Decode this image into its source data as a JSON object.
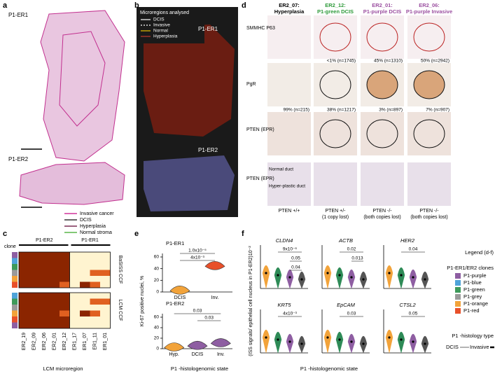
{
  "panels": {
    "a": {
      "label": "a",
      "titles": [
        "P1-ER1",
        "P1-ER2"
      ],
      "legend": [
        "Invasive cancer",
        "DCIS",
        "Hyperplasia",
        "Normal stroma"
      ]
    },
    "b": {
      "label": "b",
      "title": "Microregions analysed",
      "legend": [
        "DCIS",
        "Invasive",
        "Normal",
        "Hyperplasia"
      ],
      "titles": [
        "P1-ER1",
        "P1-ER2"
      ]
    },
    "c": {
      "label": "c",
      "clone_label": "clone",
      "groups": [
        "P1-ER2",
        "P1-ER1"
      ],
      "row_blocks": [
        "BaSISS CCF",
        "LCM CCF"
      ],
      "columns": [
        "ER2_19",
        "ER2_09",
        "ER2_06",
        "ER2_01",
        "ER2_12",
        "ER1_17",
        "ER1_07",
        "ER1_11",
        "ER1_01"
      ],
      "x_label": "LCM microregion"
    },
    "d": {
      "label": "d",
      "headers": [
        {
          "id": "ER2_07:",
          "state": "Hyperplasia"
        },
        {
          "id": "ER2_12:",
          "state": "P1-green DCIS"
        },
        {
          "id": "ER2_01:",
          "state": "P1-purple DCIS"
        },
        {
          "id": "ER2_06:",
          "state": "P1-purple Invasive"
        }
      ],
      "rows": [
        "SMMHC P63",
        "PgR",
        "PTEN (EPR)",
        "PTEN (EPR)"
      ],
      "pgr_counts": [
        "<1% (n=1745)",
        "45% (n=1310)",
        "50% (n=2942)"
      ],
      "pten_counts": [
        "99% (n=215)",
        "38% (n=1217)",
        "3% (n=897)",
        "7% (n=907)"
      ],
      "duct_labels": [
        "Normal duct",
        "Hyper-plastic duct"
      ],
      "status": [
        {
          "genotype": "PTEN +/+"
        },
        {
          "genotype": "PTEN +/-",
          "note": "(1 copy lost)"
        },
        {
          "genotype": "PTEN -/-",
          "note": "(both copies lost)"
        },
        {
          "genotype": "PTEN -/-",
          "note": "(both copies lost)"
        }
      ]
    },
    "e": {
      "label": "e",
      "y_label": "Ki-67 positive nuclei, %",
      "x_label": "P1 -histologenomic state",
      "plots": [
        {
          "title": "P1-ER1",
          "categories": [
            "DCIS",
            "Inv."
          ],
          "pvalues": [
            "1.0x10⁻⁵",
            "4x10⁻³"
          ],
          "yticks": [
            0,
            20,
            40,
            60
          ]
        },
        {
          "title": "P1-ER2",
          "categories": [
            "Hyp.",
            "DCIS",
            "Inv."
          ],
          "pvalues": [
            "0.03",
            "0.03"
          ],
          "yticks": [
            0,
            20,
            40,
            60
          ]
        }
      ]
    },
    "f": {
      "label": "f",
      "y_label": "(ISS signals/ epithelial cell nucleus in P1-ER2)10⁻²",
      "x_label": "P1 -histologenomic state",
      "genes": [
        {
          "name": "CLDN4",
          "pvalues": [
            "9x10⁻⁶",
            "0.05",
            "0.04"
          ]
        },
        {
          "name": "ACTB",
          "pvalues": [
            "0.02",
            "0.013"
          ]
        },
        {
          "name": "HER2",
          "pvalues": [
            "0.04"
          ]
        },
        {
          "name": "KRT5",
          "pvalues": [
            "4x10⁻³"
          ]
        },
        {
          "name": "EpCAM",
          "pvalues": [
            "0.03"
          ]
        },
        {
          "name": "CTSL2",
          "pvalues": [
            "0.05"
          ]
        }
      ],
      "legend": {
        "title": "Legend (d-f)",
        "clone_title": "P1-ER1/ER2 clones",
        "clones": [
          {
            "name": "P1-purple",
            "color": "#8e5ea2"
          },
          {
            "name": "P1-blue",
            "color": "#4fa3d9"
          },
          {
            "name": "P1-green",
            "color": "#3e9a5a"
          },
          {
            "name": "P1-grey",
            "color": "#9a9a9a"
          },
          {
            "name": "P1-orange",
            "color": "#f2a33a"
          },
          {
            "name": "P1-red",
            "color": "#e8502a"
          }
        ],
        "type_title": "P1 -histology type",
        "types": [
          "DCIS",
          "Invasive"
        ]
      }
    }
  }
}
